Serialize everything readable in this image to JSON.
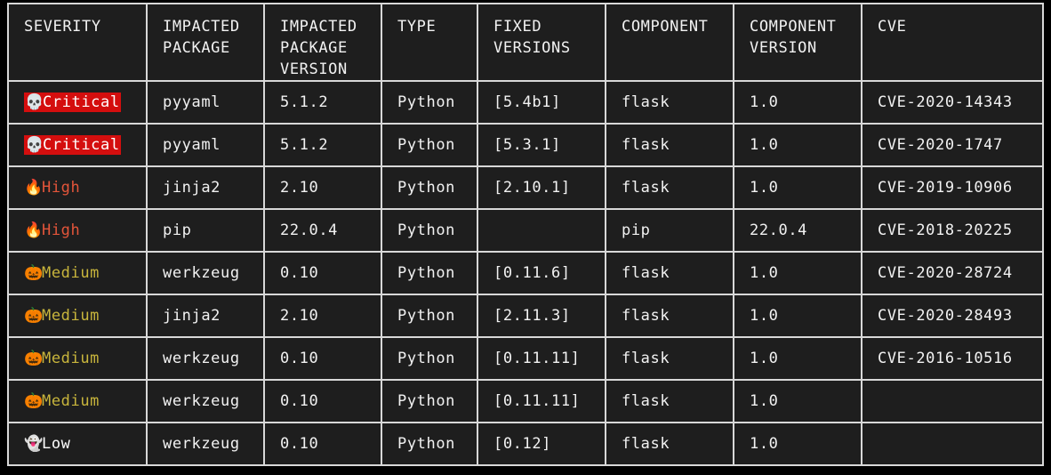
{
  "table": {
    "headers": [
      [
        "SEVERITY"
      ],
      [
        "IMPACTED",
        "PACKAGE"
      ],
      [
        "IMPACTED",
        "PACKAGE",
        "VERSION"
      ],
      [
        "TYPE"
      ],
      [
        "FIXED",
        "VERSIONS"
      ],
      [
        "COMPONENT"
      ],
      [
        "COMPONENT",
        "VERSION"
      ],
      [
        "CVE"
      ]
    ],
    "rows": [
      {
        "severity": "Critical",
        "severity_level": "critical",
        "icon": "skull-icon",
        "icon_glyph": "💀",
        "package": "pyyaml",
        "package_version": "5.1.2",
        "type": "Python",
        "fixed_versions": "[5.4b1]",
        "component": "flask",
        "component_version": "1.0",
        "cve": "CVE-2020-14343"
      },
      {
        "severity": "Critical",
        "severity_level": "critical",
        "icon": "skull-icon",
        "icon_glyph": "💀",
        "package": "pyyaml",
        "package_version": "5.1.2",
        "type": "Python",
        "fixed_versions": "[5.3.1]",
        "component": "flask",
        "component_version": "1.0",
        "cve": "CVE-2020-1747"
      },
      {
        "severity": "High",
        "severity_level": "high",
        "icon": "fire-icon",
        "icon_glyph": "🔥",
        "package": "jinja2",
        "package_version": "2.10",
        "type": "Python",
        "fixed_versions": "[2.10.1]",
        "component": "flask",
        "component_version": "1.0",
        "cve": "CVE-2019-10906"
      },
      {
        "severity": "High",
        "severity_level": "high",
        "icon": "fire-icon",
        "icon_glyph": "🔥",
        "package": "pip",
        "package_version": "22.0.4",
        "type": "Python",
        "fixed_versions": "",
        "component": "pip",
        "component_version": "22.0.4",
        "cve": "CVE-2018-20225"
      },
      {
        "severity": "Medium",
        "severity_level": "medium",
        "icon": "pumpkin-icon",
        "icon_glyph": "🎃",
        "package": "werkzeug",
        "package_version": "0.10",
        "type": "Python",
        "fixed_versions": "[0.11.6]",
        "component": "flask",
        "component_version": "1.0",
        "cve": "CVE-2020-28724"
      },
      {
        "severity": "Medium",
        "severity_level": "medium",
        "icon": "pumpkin-icon",
        "icon_glyph": "🎃",
        "package": "jinja2",
        "package_version": "2.10",
        "type": "Python",
        "fixed_versions": "[2.11.3]",
        "component": "flask",
        "component_version": "1.0",
        "cve": "CVE-2020-28493"
      },
      {
        "severity": "Medium",
        "severity_level": "medium",
        "icon": "pumpkin-icon",
        "icon_glyph": "🎃",
        "package": "werkzeug",
        "package_version": "0.10",
        "type": "Python",
        "fixed_versions": "[0.11.11]",
        "component": "flask",
        "component_version": "1.0",
        "cve": "CVE-2016-10516"
      },
      {
        "severity": "Medium",
        "severity_level": "medium",
        "icon": "pumpkin-icon",
        "icon_glyph": "🎃",
        "package": "werkzeug",
        "package_version": "0.10",
        "type": "Python",
        "fixed_versions": "[0.11.11]",
        "component": "flask",
        "component_version": "1.0",
        "cve": ""
      },
      {
        "severity": "Low",
        "severity_level": "low",
        "icon": "ghost-icon",
        "icon_glyph": "👻",
        "package": "werkzeug",
        "package_version": "0.10",
        "type": "Python",
        "fixed_versions": "[0.12]",
        "component": "flask",
        "component_version": "1.0",
        "cve": ""
      }
    ]
  },
  "colors": {
    "background": "#000000",
    "table_background": "#1e1e1e",
    "border": "#d8d8d8",
    "text": "#f2f2f2",
    "critical_bg": "#d40e0e",
    "high": "#e4553a",
    "medium": "#c8b53c",
    "low": "#ffffff"
  }
}
